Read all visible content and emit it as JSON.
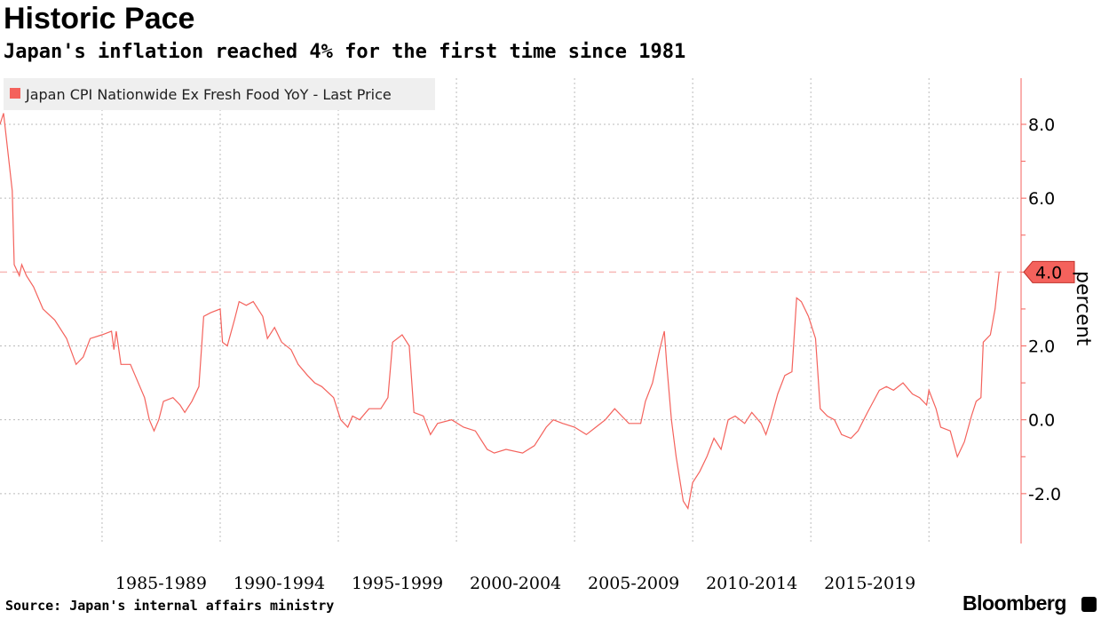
{
  "title": "Historic Pace",
  "subtitle": "Japan's inflation reached 4% for the first time since 1981",
  "source": "Source: Japan's internal affairs ministry",
  "brand": "Bloomberg",
  "colors": {
    "series": "#f4625c",
    "legend_bg": "#efefef",
    "grid": "#bbbbbb"
  },
  "chart_data": {
    "type": "line",
    "title": "",
    "ylabel": "percent",
    "ylim": [
      -3.35,
      9.25
    ],
    "xlim": [
      1980.68,
      2023.9
    ],
    "yticks": [
      -2.0,
      0.0,
      2.0,
      4.0,
      6.0,
      8.0
    ],
    "ytick_labels": [
      "-2.0",
      "0.0",
      "2.0",
      "4.0",
      "6.0",
      "8.0"
    ],
    "xticks": [
      1985,
      1990,
      1995,
      2000,
      2005,
      2010,
      2015,
      2020
    ],
    "xtick_labels": [
      "1985-1989",
      "1990-1994",
      "1995-1999",
      "2000-2004",
      "2005-2009",
      "2010-2014",
      "2015-2019"
    ],
    "grid": true,
    "legend": "top-left",
    "reference_line": 4.0,
    "last_value_label": "4.0",
    "series": [
      {
        "name": "Japan CPI Nationwide Ex Fresh Food YoY - Last Price",
        "x": [
          1980.68,
          1980.83,
          1981.2,
          1981.28,
          1981.5,
          1981.6,
          1981.8,
          1982.1,
          1982.5,
          1983.0,
          1983.5,
          1983.9,
          1984.2,
          1984.5,
          1985.0,
          1985.4,
          1985.5,
          1985.6,
          1985.8,
          1986.2,
          1986.4,
          1986.8,
          1987.0,
          1987.2,
          1987.4,
          1987.6,
          1988.0,
          1988.3,
          1988.5,
          1988.8,
          1989.1,
          1989.3,
          1989.6,
          1990.0,
          1990.1,
          1990.3,
          1990.6,
          1990.8,
          1991.1,
          1991.4,
          1991.8,
          1992.0,
          1992.3,
          1992.6,
          1993.0,
          1993.3,
          1993.7,
          1994.0,
          1994.3,
          1994.8,
          1995.1,
          1995.4,
          1995.6,
          1995.9,
          1996.3,
          1996.8,
          1997.1,
          1997.3,
          1997.7,
          1998.0,
          1998.2,
          1998.6,
          1998.9,
          1999.2,
          1999.8,
          2000.3,
          2000.8,
          2001.3,
          2001.6,
          2002.1,
          2002.8,
          2003.3,
          2003.8,
          2004.1,
          2004.5,
          2005.0,
          2005.5,
          2005.9,
          2006.3,
          2006.7,
          2007.0,
          2007.3,
          2007.8,
          2008.0,
          2008.3,
          2008.6,
          2008.8,
          2008.9,
          2009.1,
          2009.3,
          2009.6,
          2009.8,
          2010.0,
          2010.3,
          2010.6,
          2010.9,
          2011.2,
          2011.5,
          2011.8,
          2012.2,
          2012.5,
          2012.9,
          2013.1,
          2013.3,
          2013.6,
          2013.9,
          2014.2,
          2014.4,
          2014.6,
          2014.9,
          2015.2,
          2015.4,
          2015.7,
          2016.0,
          2016.3,
          2016.7,
          2017.0,
          2017.4,
          2017.9,
          2018.2,
          2018.5,
          2018.9,
          2019.3,
          2019.6,
          2019.9,
          2020.0,
          2020.3,
          2020.5,
          2020.9,
          2021.2,
          2021.5,
          2021.8,
          2022.0,
          2022.2,
          2022.3,
          2022.6,
          2022.8,
          2022.9,
          2022.97
        ],
        "y": [
          8.0,
          8.3,
          6.2,
          4.2,
          3.9,
          4.2,
          3.9,
          3.6,
          3.0,
          2.7,
          2.2,
          1.5,
          1.7,
          2.2,
          2.3,
          2.4,
          1.9,
          2.4,
          1.5,
          1.5,
          1.2,
          0.6,
          0.0,
          -0.3,
          0.0,
          0.5,
          0.6,
          0.4,
          0.2,
          0.5,
          0.9,
          2.8,
          2.9,
          3.0,
          2.1,
          2.0,
          2.7,
          3.2,
          3.1,
          3.2,
          2.8,
          2.2,
          2.5,
          2.1,
          1.9,
          1.5,
          1.2,
          1.0,
          0.9,
          0.6,
          0.0,
          -0.2,
          0.1,
          0.0,
          0.3,
          0.3,
          0.6,
          2.1,
          2.3,
          2.0,
          0.2,
          0.1,
          -0.4,
          -0.1,
          0.0,
          -0.2,
          -0.3,
          -0.8,
          -0.9,
          -0.8,
          -0.9,
          -0.7,
          -0.2,
          0.0,
          -0.1,
          -0.2,
          -0.4,
          -0.2,
          0.0,
          0.3,
          0.1,
          -0.1,
          -0.1,
          0.5,
          1.0,
          1.9,
          2.4,
          1.5,
          0.0,
          -1.0,
          -2.2,
          -2.4,
          -1.7,
          -1.4,
          -1.0,
          -0.5,
          -0.8,
          0.0,
          0.1,
          -0.1,
          0.2,
          -0.1,
          -0.4,
          0.0,
          0.7,
          1.2,
          1.3,
          3.3,
          3.2,
          2.8,
          2.2,
          0.3,
          0.1,
          0.0,
          -0.4,
          -0.5,
          -0.3,
          0.2,
          0.8,
          0.9,
          0.8,
          1.0,
          0.7,
          0.6,
          0.4,
          0.8,
          0.3,
          -0.2,
          -0.3,
          -1.0,
          -0.6,
          0.1,
          0.5,
          0.6,
          2.1,
          2.3,
          3.0,
          3.6,
          4.0
        ]
      }
    ]
  }
}
